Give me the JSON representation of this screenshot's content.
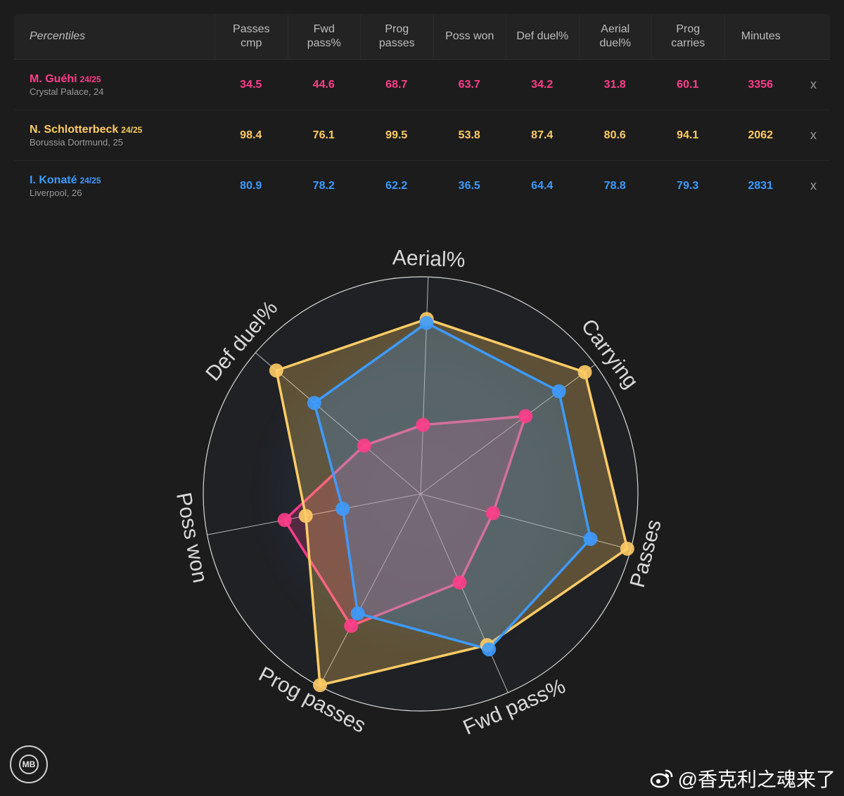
{
  "table": {
    "header_label": "Percentiles",
    "columns": [
      "Passes\ncmp",
      "Fwd\npass%",
      "Prog\npasses",
      "Poss won",
      "Def duel%",
      "Aerial\nduel%",
      "Prog\ncarries",
      "Minutes"
    ],
    "remove_label": "x",
    "players": [
      {
        "name": "M. Guéhi",
        "season": "24/25",
        "team": "Crystal Palace, 24",
        "values": [
          "34.5",
          "44.6",
          "68.7",
          "63.7",
          "34.2",
          "31.8",
          "60.1",
          "3356"
        ],
        "color": "#ff3d8a"
      },
      {
        "name": "N. Schlotterbeck",
        "season": "24/25",
        "team": "Borussia Dortmund, 25",
        "values": [
          "98.4",
          "76.1",
          "99.5",
          "53.8",
          "87.4",
          "80.6",
          "94.1",
          "2062"
        ],
        "color": "#ffcc66"
      },
      {
        "name": "I. Konaté",
        "season": "24/25",
        "team": "Liverpool, 26",
        "values": [
          "80.9",
          "78.2",
          "62.2",
          "36.5",
          "64.4",
          "78.8",
          "79.3",
          "2831"
        ],
        "color": "#3d9bff"
      }
    ]
  },
  "chart_data": {
    "type": "radar",
    "axes": [
      "Aerial%",
      "Carrying",
      "Passes",
      "Fwd pass%",
      "Prog passes",
      "Poss won",
      "Def duel%"
    ],
    "range": [
      0,
      100
    ],
    "series": [
      {
        "name": "M. Guéhi",
        "color": "#ff3d8a",
        "values": [
          31.8,
          60.1,
          34.5,
          44.6,
          68.7,
          63.7,
          34.2
        ]
      },
      {
        "name": "N. Schlotterbeck",
        "color": "#ffcc66",
        "values": [
          80.6,
          94.1,
          98.4,
          76.1,
          99.5,
          53.8,
          87.4
        ]
      },
      {
        "name": "I. Konaté",
        "color": "#3d9bff",
        "values": [
          78.8,
          79.3,
          80.9,
          78.2,
          62.2,
          36.5,
          64.4
        ]
      }
    ]
  },
  "branding": {
    "logo_text": "MB",
    "watermark_text": "@香克利之魂来了"
  }
}
